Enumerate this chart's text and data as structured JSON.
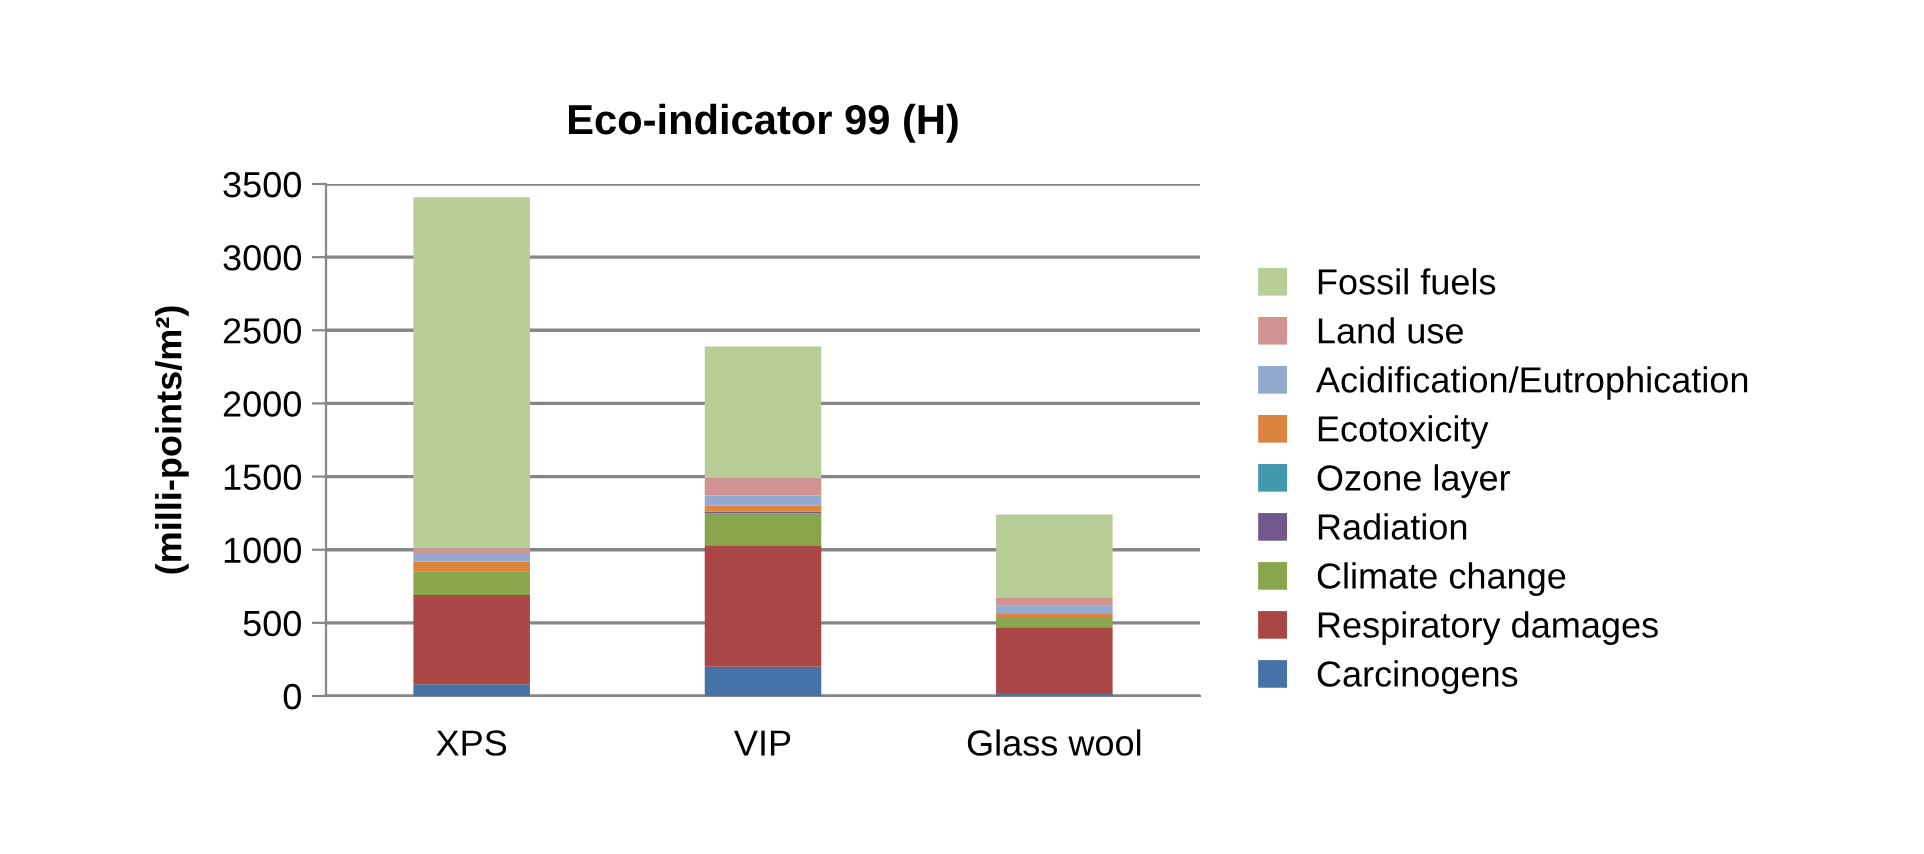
{
  "chart_data": {
    "type": "bar",
    "title": "Eco-indicator 99 (H)",
    "ylabel": "(milli-points/m²)",
    "categories": [
      "XPS",
      "VIP",
      "Glass wool"
    ],
    "stacked": true,
    "legend": "right",
    "grid": "y",
    "ylim": [
      0,
      3500
    ],
    "yticks": [
      0,
      500,
      1000,
      1500,
      2000,
      2500,
      3000,
      3500
    ],
    "series": [
      {
        "name": "Carcinogens",
        "color": "#4572a7",
        "values": [
          80,
          200,
          20
        ]
      },
      {
        "name": "Respiratory damages",
        "color": "#aa4643",
        "values": [
          610,
          830,
          450
        ]
      },
      {
        "name": "Climate change",
        "color": "#89a54e",
        "values": [
          160,
          220,
          70
        ]
      },
      {
        "name": "Radiation",
        "color": "#71588f",
        "values": [
          null,
          10,
          null
        ]
      },
      {
        "name": "Ozone layer",
        "color": "#4198af",
        "values": [
          null,
          null,
          null
        ]
      },
      {
        "name": "Ecotoxicity",
        "color": "#db843d",
        "values": [
          70,
          40,
          20
        ]
      },
      {
        "name": "Acidification/Eutrophication",
        "color": "#93a9cf",
        "values": [
          50,
          70,
          60
        ]
      },
      {
        "name": "Land use",
        "color": "#d19392",
        "values": [
          40,
          120,
          50
        ]
      },
      {
        "name": "Fossil fuels",
        "color": "#b9cd96",
        "values": [
          2400,
          900,
          570
        ]
      }
    ]
  }
}
